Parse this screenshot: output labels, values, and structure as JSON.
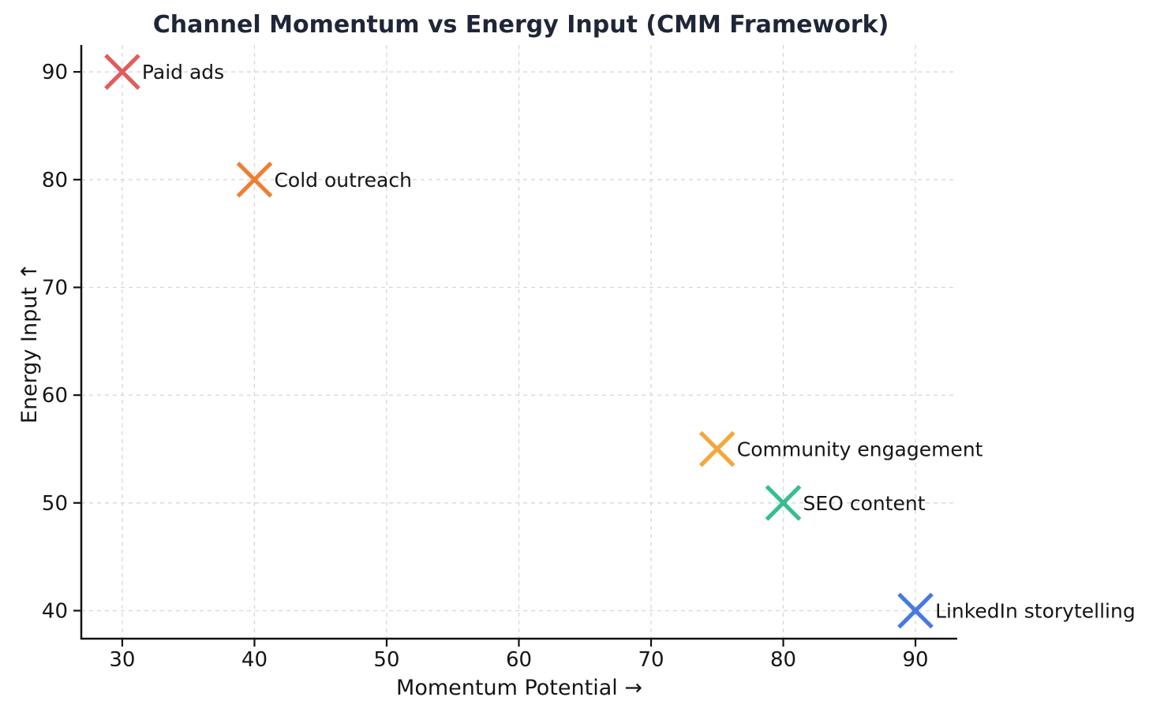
{
  "chart_data": {
    "type": "scatter",
    "title": "Channel Momentum vs Energy Input (CMM Framework)",
    "xlabel": "Momentum Potential →",
    "ylabel": "Energy Input ↑",
    "xlim": [
      26.9,
      93.1
    ],
    "ylim": [
      37.4,
      92.5
    ],
    "xticks": [
      30,
      40,
      50,
      60,
      70,
      80,
      90
    ],
    "yticks": [
      40,
      50,
      60,
      70,
      80,
      90
    ],
    "grid": true,
    "grid_style": "dashed",
    "legend": "none",
    "marker": "x",
    "points": [
      {
        "label": "Paid ads",
        "x": 30,
        "y": 90,
        "color": "#e25c5c"
      },
      {
        "label": "Cold outreach",
        "x": 40,
        "y": 80,
        "color": "#ee7e33"
      },
      {
        "label": "Community engagement",
        "x": 75,
        "y": 55,
        "color": "#f2a83b"
      },
      {
        "label": "SEO content",
        "x": 80,
        "y": 50,
        "color": "#38bd8d"
      },
      {
        "label": "LinkedIn storytelling",
        "x": 90,
        "y": 40,
        "color": "#487add"
      }
    ],
    "colors": {
      "title": "#1e2637",
      "text": "#151515",
      "grid": "#d6d6d6",
      "spine": "#111111"
    }
  }
}
